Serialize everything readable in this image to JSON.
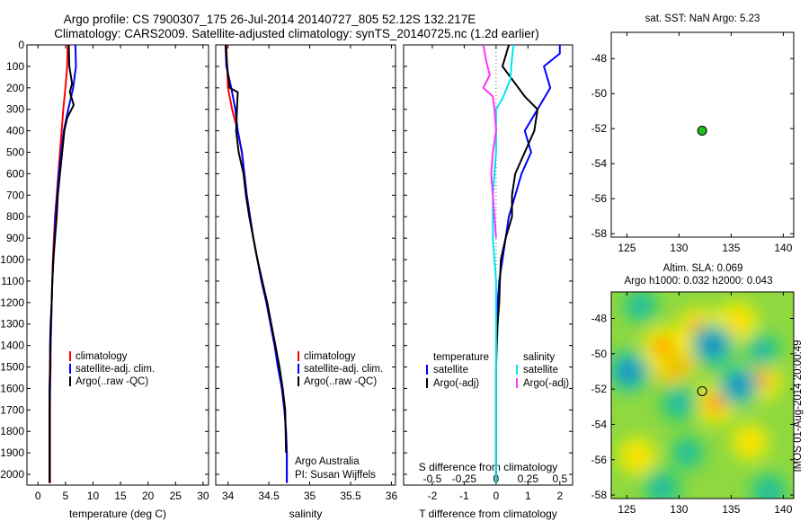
{
  "header": {
    "line1": "Argo profile: CS 7900307_175 26-Jul-2014 20140727_805 52.12S 132.217E",
    "line2": "Climatology: CARS2009. Satellite-adjusted climatology: synTS_20140725.nc (1.2d earlier)"
  },
  "colors": {
    "climatology": "#ff0000",
    "satellite": "#0000ff",
    "argo": "#000000",
    "satellite_s": "#00e5ee",
    "argo_s": "#ff33ff",
    "point": "#22bb22"
  },
  "chart_data": [
    {
      "id": "temperature",
      "type": "line",
      "xlabel": "temperature (deg C)",
      "ylim": [
        2050,
        0
      ],
      "xlim": [
        -2,
        31
      ],
      "xticks": [
        0,
        5,
        10,
        15,
        20,
        25,
        30
      ],
      "yticks": [
        0,
        100,
        200,
        300,
        400,
        500,
        600,
        700,
        800,
        900,
        1000,
        1100,
        1200,
        1300,
        1400,
        1500,
        1600,
        1700,
        1800,
        1900,
        2000
      ],
      "legend": [
        "climatology",
        "satellite-adj. clim.",
        "Argo(..raw -QC)"
      ],
      "series": [
        {
          "name": "climatology",
          "x": [
            5.4,
            5.3,
            5.0,
            4.6,
            4.3,
            4.0,
            3.7,
            3.4,
            3.1,
            2.9,
            2.7,
            2.6,
            2.5,
            2.4,
            2.3,
            2.3,
            2.2,
            2.2,
            2.2,
            2.2
          ],
          "y": [
            0,
            100,
            200,
            300,
            400,
            500,
            600,
            700,
            800,
            900,
            1000,
            1100,
            1200,
            1300,
            1400,
            1500,
            1600,
            1700,
            1800,
            2040
          ]
        },
        {
          "name": "satellite-adj. clim.",
          "x": [
            6.8,
            6.9,
            6.4,
            5.5,
            4.7,
            4.2,
            3.8,
            3.5,
            3.2,
            3.0,
            2.8,
            2.6,
            2.5,
            2.4,
            2.3,
            2.2,
            2.2,
            2.1,
            2.1,
            2.1
          ],
          "y": [
            0,
            100,
            200,
            300,
            400,
            500,
            600,
            700,
            800,
            900,
            1000,
            1100,
            1200,
            1300,
            1400,
            1500,
            1600,
            1700,
            1800,
            2040
          ]
        },
        {
          "name": "Argo(..raw -QC)",
          "x": [
            5.6,
            5.7,
            6.2,
            5.8,
            6.5,
            5.3,
            4.8,
            4.4,
            4.0,
            3.6,
            3.4,
            3.1,
            2.8,
            2.6,
            2.5,
            2.3,
            2.2,
            2.2,
            2.1,
            2.1,
            2.1
          ],
          "y": [
            0,
            100,
            180,
            220,
            280,
            340,
            400,
            500,
            600,
            700,
            800,
            900,
            1000,
            1100,
            1200,
            1300,
            1400,
            1500,
            1600,
            1800,
            2040
          ]
        }
      ]
    },
    {
      "id": "salinity",
      "type": "line",
      "xlabel": "salinity",
      "ylim": [
        2050,
        0
      ],
      "xlim": [
        33.85,
        36.05
      ],
      "xticks": [
        34,
        34.5,
        35,
        35.5,
        36
      ],
      "legend": [
        "climatology",
        "satellite-adj. clim.",
        "Argo(..raw -QC)"
      ],
      "annotation": [
        "Argo Australia",
        "PI: Susan Wijffels"
      ],
      "series": [
        {
          "name": "climatology",
          "x": [
            33.98,
            33.99,
            34.0,
            34.05,
            34.12,
            34.17,
            34.2,
            34.23,
            34.27,
            34.31,
            34.36,
            34.41,
            34.47,
            34.52,
            34.57,
            34.62,
            34.66,
            34.69,
            34.71,
            34.72,
            34.72
          ],
          "y": [
            0,
            100,
            200,
            300,
            400,
            500,
            600,
            700,
            800,
            900,
            1000,
            1100,
            1200,
            1300,
            1400,
            1500,
            1600,
            1700,
            1800,
            1900,
            2040
          ]
        },
        {
          "name": "satellite-adj. clim.",
          "x": [
            33.97,
            33.98,
            34.04,
            34.09,
            34.12,
            34.17,
            34.2,
            34.23,
            34.27,
            34.31,
            34.36,
            34.41,
            34.47,
            34.52,
            34.57,
            34.61,
            34.66,
            34.69,
            34.71,
            34.72,
            34.72
          ],
          "y": [
            0,
            100,
            200,
            300,
            400,
            500,
            600,
            700,
            800,
            900,
            1000,
            1100,
            1200,
            1300,
            1400,
            1500,
            1600,
            1700,
            1800,
            1900,
            2040
          ]
        },
        {
          "name": "Argo(..raw -QC)",
          "x": [
            33.97,
            33.99,
            34.02,
            34.12,
            34.11,
            34.1,
            34.13,
            34.19,
            34.22,
            34.26,
            34.31,
            34.36,
            34.42,
            34.48,
            34.53,
            34.58,
            34.63,
            34.67,
            34.7,
            34.71
          ],
          "y": [
            0,
            100,
            200,
            220,
            300,
            400,
            500,
            600,
            700,
            800,
            900,
            1000,
            1100,
            1200,
            1300,
            1400,
            1500,
            1600,
            1700,
            1900
          ]
        }
      ]
    },
    {
      "id": "differences",
      "type": "line",
      "xlabel": "T difference from climatology",
      "toplabel": "S difference from climatology",
      "ylim": [
        2050,
        0
      ],
      "xlim": [
        -2.9,
        2.4
      ],
      "xticks": [
        -2,
        -1,
        0,
        1,
        2
      ],
      "top_ticks": [
        "-0.5",
        "-0.25",
        "0",
        "0.25",
        "0.5"
      ],
      "legend_titles": [
        "temperature",
        "salinity"
      ],
      "legend": [
        "satellite",
        "Argo(-adj)",
        "satellite",
        "Argo(-adj)"
      ],
      "series": [
        {
          "name": "satellite",
          "x": [
            2.0,
            2.0,
            1.5,
            1.7,
            1.3,
            0.9,
            1.1,
            0.8,
            0.6,
            0.4,
            0.3,
            0.2,
            0.1,
            0.05,
            0.02,
            0.0,
            0.0,
            0.0,
            0.0
          ],
          "y": [
            0,
            40,
            100,
            200,
            300,
            400,
            500,
            600,
            700,
            800,
            900,
            1000,
            1100,
            1200,
            1300,
            1400,
            1500,
            1600,
            2040
          ]
        },
        {
          "name": "Argo(-adj)",
          "x": [
            0.4,
            0.2,
            0.5,
            0.9,
            1.3,
            1.2,
            0.9,
            0.6,
            0.5,
            0.5,
            0.3,
            0.15,
            0.12,
            0.1,
            0.05,
            0.02,
            0.0,
            0.0
          ],
          "y": [
            0,
            100,
            160,
            240,
            300,
            400,
            500,
            600,
            700,
            800,
            900,
            1000,
            1100,
            1200,
            1300,
            1400,
            1500,
            2040
          ]
        },
        {
          "name": "satellite",
          "x": [
            0.55,
            0.5,
            0.45,
            0.2,
            0.0,
            0.0,
            0.0,
            -0.05,
            -0.1,
            -0.1,
            -0.1,
            -0.05,
            0.0,
            0.0,
            0.0,
            0.0
          ],
          "y": [
            0,
            60,
            160,
            250,
            300,
            400,
            500,
            600,
            700,
            800,
            900,
            1000,
            1100,
            1200,
            1500,
            2040
          ]
        },
        {
          "name": "Argo(-adj)",
          "x": [
            -0.4,
            -0.3,
            -0.2,
            -0.4,
            -0.1,
            -0.05,
            0.0,
            -0.1,
            -0.15,
            -0.1,
            -0.05,
            0.0
          ],
          "y": [
            0,
            80,
            140,
            200,
            240,
            300,
            400,
            500,
            600,
            700,
            800,
            900
          ]
        }
      ]
    },
    {
      "id": "sst-map",
      "type": "scatter",
      "title": "sat. SST: NaN Argo: 5.23",
      "xlim": [
        123.5,
        141
      ],
      "ylim": [
        -58.2,
        -46.5
      ],
      "xticks": [
        125,
        130,
        135,
        140
      ],
      "yticks": [
        -48,
        -50,
        -52,
        -54,
        -56,
        -58
      ],
      "points": [
        {
          "x": 132.217,
          "y": -52.12
        }
      ]
    },
    {
      "id": "sla-map",
      "type": "heatmap",
      "title": "Altim. SLA: 0.069",
      "subtitle": "Argo h1000: 0.032 h2000: 0.043",
      "side_label": "IMOS 01-Aug-2014 20:00:49",
      "xlim": [
        123.5,
        141
      ],
      "ylim": [
        -58.2,
        -46.5
      ],
      "xticks": [
        125,
        130,
        135,
        140
      ],
      "yticks": [
        -48,
        -50,
        -52,
        -54,
        -56,
        -58
      ],
      "points": [
        {
          "x": 132.217,
          "y": -52.12
        }
      ],
      "blobs": [
        {
          "x": 129.3,
          "y": -50.3,
          "level": 0.9
        },
        {
          "x": 128.5,
          "y": -49.6,
          "level": 0.6
        },
        {
          "x": 131.8,
          "y": -48.6,
          "level": 0.55
        },
        {
          "x": 134.5,
          "y": -48.5,
          "level": 0.45
        },
        {
          "x": 135.6,
          "y": -48.2,
          "level": 0.5
        },
        {
          "x": 137.8,
          "y": -51.5,
          "level": 0.6
        },
        {
          "x": 133.5,
          "y": -52.8,
          "level": 0.6
        },
        {
          "x": 126.0,
          "y": -55.8,
          "level": 0.4
        },
        {
          "x": 136.8,
          "y": -55.0,
          "level": 0.35
        },
        {
          "x": 133.2,
          "y": -49.5,
          "level": -0.7
        },
        {
          "x": 125.2,
          "y": -51.0,
          "level": -0.6
        },
        {
          "x": 130.0,
          "y": -52.8,
          "level": -0.5
        },
        {
          "x": 135.7,
          "y": -51.8,
          "level": -0.6
        },
        {
          "x": 138.0,
          "y": -49.8,
          "level": -0.4
        },
        {
          "x": 126.3,
          "y": -47.3,
          "level": -0.35
        },
        {
          "x": 128.4,
          "y": -57.6,
          "level": -0.5
        },
        {
          "x": 138.6,
          "y": -57.8,
          "level": -0.45
        },
        {
          "x": 130.8,
          "y": -55.6,
          "level": -0.3
        }
      ]
    }
  ]
}
